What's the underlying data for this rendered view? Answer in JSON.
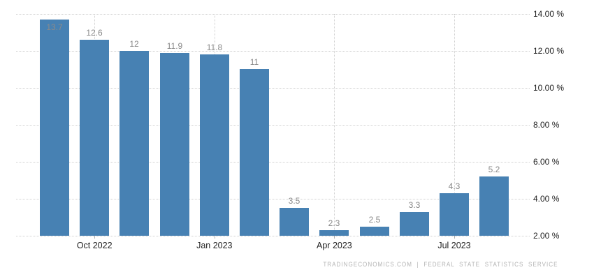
{
  "chart_data": {
    "type": "bar",
    "title": "",
    "xlabel": "",
    "ylabel": "",
    "values": [
      13.7,
      12.6,
      12,
      11.9,
      11.8,
      11,
      3.5,
      2.3,
      2.5,
      3.3,
      4.3,
      5.2
    ],
    "bar_labels": [
      "13.7",
      "12.6",
      "12",
      "11.9",
      "11.8",
      "11",
      "3.5",
      "2.3",
      "2.5",
      "3.3",
      "4.3",
      "5.2"
    ],
    "x_tick_labels": [
      {
        "label": "Oct 2022",
        "bar_index": 1
      },
      {
        "label": "Jan 2023",
        "bar_index": 4
      },
      {
        "label": "Apr 2023",
        "bar_index": 7
      },
      {
        "label": "Jul 2023",
        "bar_index": 10
      }
    ],
    "y_ticks": [
      "14.00 %",
      "12.00 %",
      "10.00 %",
      "8.00 %",
      "6.00 %",
      "4.00 %",
      "2.00 %"
    ],
    "ylim": [
      2,
      14
    ],
    "bar_color": "#4781b3",
    "value_label_color": "#8a8a8a",
    "grid": "dotted horizontal gridlines at every y tick; dotted vertical gridlines at labeled months",
    "legend": "none"
  },
  "footer": {
    "source": "TRADINGECONOMICS.COM  |  FEDERAL STATE STATISTICS SERVICE"
  }
}
